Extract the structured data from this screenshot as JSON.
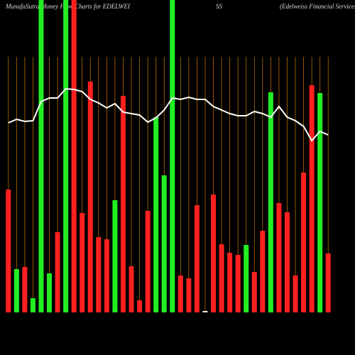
{
  "chart_data": {
    "type": "bar",
    "title": [
      "MunafaSutra Money Flow Charts for EDELWEI",
      "SS",
      "(Edelweiss Financial Services L"
    ],
    "categories": [
      null,
      null,
      null,
      null,
      null,
      null,
      null,
      null,
      null,
      null,
      null,
      null,
      null,
      null,
      null,
      null,
      null,
      null,
      null,
      null,
      null,
      null,
      null,
      null,
      null,
      null,
      null,
      null,
      null,
      null,
      null,
      null,
      null,
      null,
      null,
      null,
      null,
      null,
      null,
      null
    ],
    "values": [
      173,
      61,
      64,
      20,
      440,
      55,
      113,
      440,
      440,
      140,
      325,
      106,
      103,
      158,
      305,
      65,
      17,
      143,
      275,
      193,
      440,
      52,
      48,
      151,
      2,
      166,
      96,
      84,
      81,
      95,
      57,
      115,
      310,
      154,
      141,
      52,
      197,
      320,
      309,
      83
    ],
    "colors": [
      "#ff2020",
      "#22ee22",
      "#ff2020",
      "#22ee22",
      "#22ee22",
      "#22ee22",
      "#ff2020",
      "#22ee22",
      "#ff2020",
      "#ff2020",
      "#ff2020",
      "#ff2020",
      "#ff2020",
      "#22ee22",
      "#ff2020",
      "#ff2020",
      "#ff2020",
      "#ff2020",
      "#22ee22",
      "#22ee22",
      "#22ee22",
      "#ff2020",
      "#ff2020",
      "#ff2020",
      "#eeeeee",
      "#ff2020",
      "#ff2020",
      "#ff2020",
      "#ff2020",
      "#22ee22",
      "#ff2020",
      "#ff2020",
      "#22ee22",
      "#ff2020",
      "#ff2020",
      "#ff2020",
      "#ff2020",
      "#ff2020",
      "#22ee22",
      "#ff2020"
    ],
    "line": {
      "color": "#ffffff",
      "values": [
        267,
        272,
        269,
        270,
        297,
        302,
        302,
        315,
        314,
        311,
        300,
        295,
        288,
        294,
        282,
        280,
        278,
        268,
        274,
        285,
        302,
        300,
        303,
        300,
        300,
        290,
        285,
        280,
        277,
        277,
        283,
        280,
        275,
        290,
        275,
        270,
        262,
        242,
        255,
        250
      ]
    },
    "ylim": [
      0,
      440
    ]
  }
}
